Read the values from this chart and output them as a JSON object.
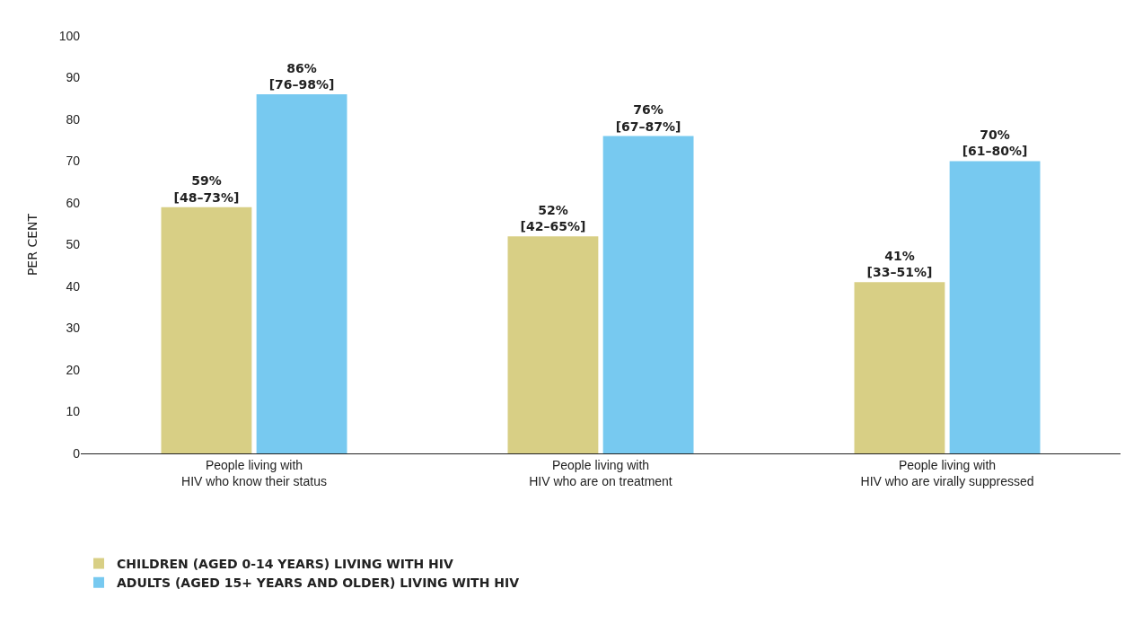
{
  "chart_data": {
    "type": "bar",
    "ylabel": "PER CENT",
    "categories": [
      "People living with\nHIV who know their status",
      "People living with\nHIV who are on treatment",
      "People living with\nHIV who are virally suppressed"
    ],
    "series": [
      {
        "name": "CHILDREN (AGED 0-14 YEARS) LIVING WITH HIV",
        "color": "#d8cf85",
        "values": [
          59,
          52,
          41
        ],
        "value_labels": [
          "59%\n[48–73%]",
          "52%\n[42–65%]",
          "41%\n[33–51%]"
        ]
      },
      {
        "name": "ADULTS (AGED 15+ YEARS AND OLDER) LIVING WITH HIV",
        "color": "#77c9f0",
        "values": [
          86,
          76,
          70
        ],
        "value_labels": [
          "86%\n[76–98%]",
          "76%\n[67–87%]",
          "70%\n[61–80%]"
        ]
      }
    ],
    "ylim": [
      0,
      100
    ],
    "yticks": [
      0,
      10,
      20,
      30,
      40,
      50,
      60,
      70,
      80,
      90,
      100
    ],
    "grid": false,
    "legend": "bottom left"
  }
}
